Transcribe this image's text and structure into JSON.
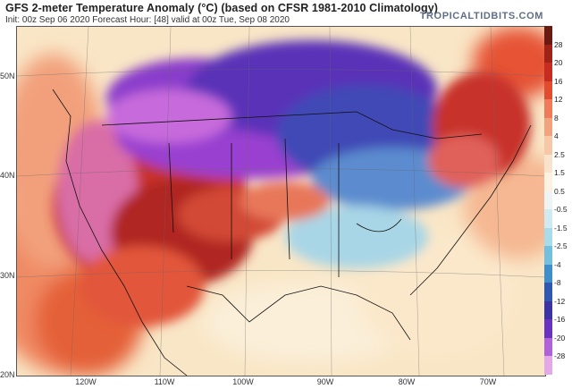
{
  "header": {
    "title": "GFS 2-meter Temperature Anomaly (°C) (based on CFSR 1981-2010 Climatology)",
    "subtitle": "Init: 00z Sep 06 2020   Forecast Hour: [48]   valid at 00z Tue, Sep 08 2020",
    "brand": "TROPICALTIDBITS.COM"
  },
  "map": {
    "lat_labels": [
      "50N",
      "40N",
      "30N",
      "20N"
    ],
    "lon_labels": [
      "120W",
      "110W",
      "100W",
      "90W",
      "80W",
      "70W"
    ]
  },
  "colorbar": {
    "labels": [
      "28",
      "20",
      "16",
      "12",
      "8",
      "4",
      "2.5",
      "1.5",
      "0.5",
      "-0.5",
      "-1.5",
      "-2.5",
      "-4",
      "-8",
      "-12",
      "-16",
      "-20",
      "-28"
    ],
    "colors": [
      "#6b1a12",
      "#9e2316",
      "#c62c1f",
      "#e14b2e",
      "#f07a5a",
      "#f3a27e",
      "#f6c8a8",
      "#f9e3cd",
      "#fbf2e2",
      "#eef4f4",
      "#cfeaf1",
      "#a9dbe9",
      "#73c0de",
      "#3e8fc9",
      "#2f58b3",
      "#3c34a6",
      "#6a32c0",
      "#b062d8",
      "#e4a7e8"
    ]
  }
}
